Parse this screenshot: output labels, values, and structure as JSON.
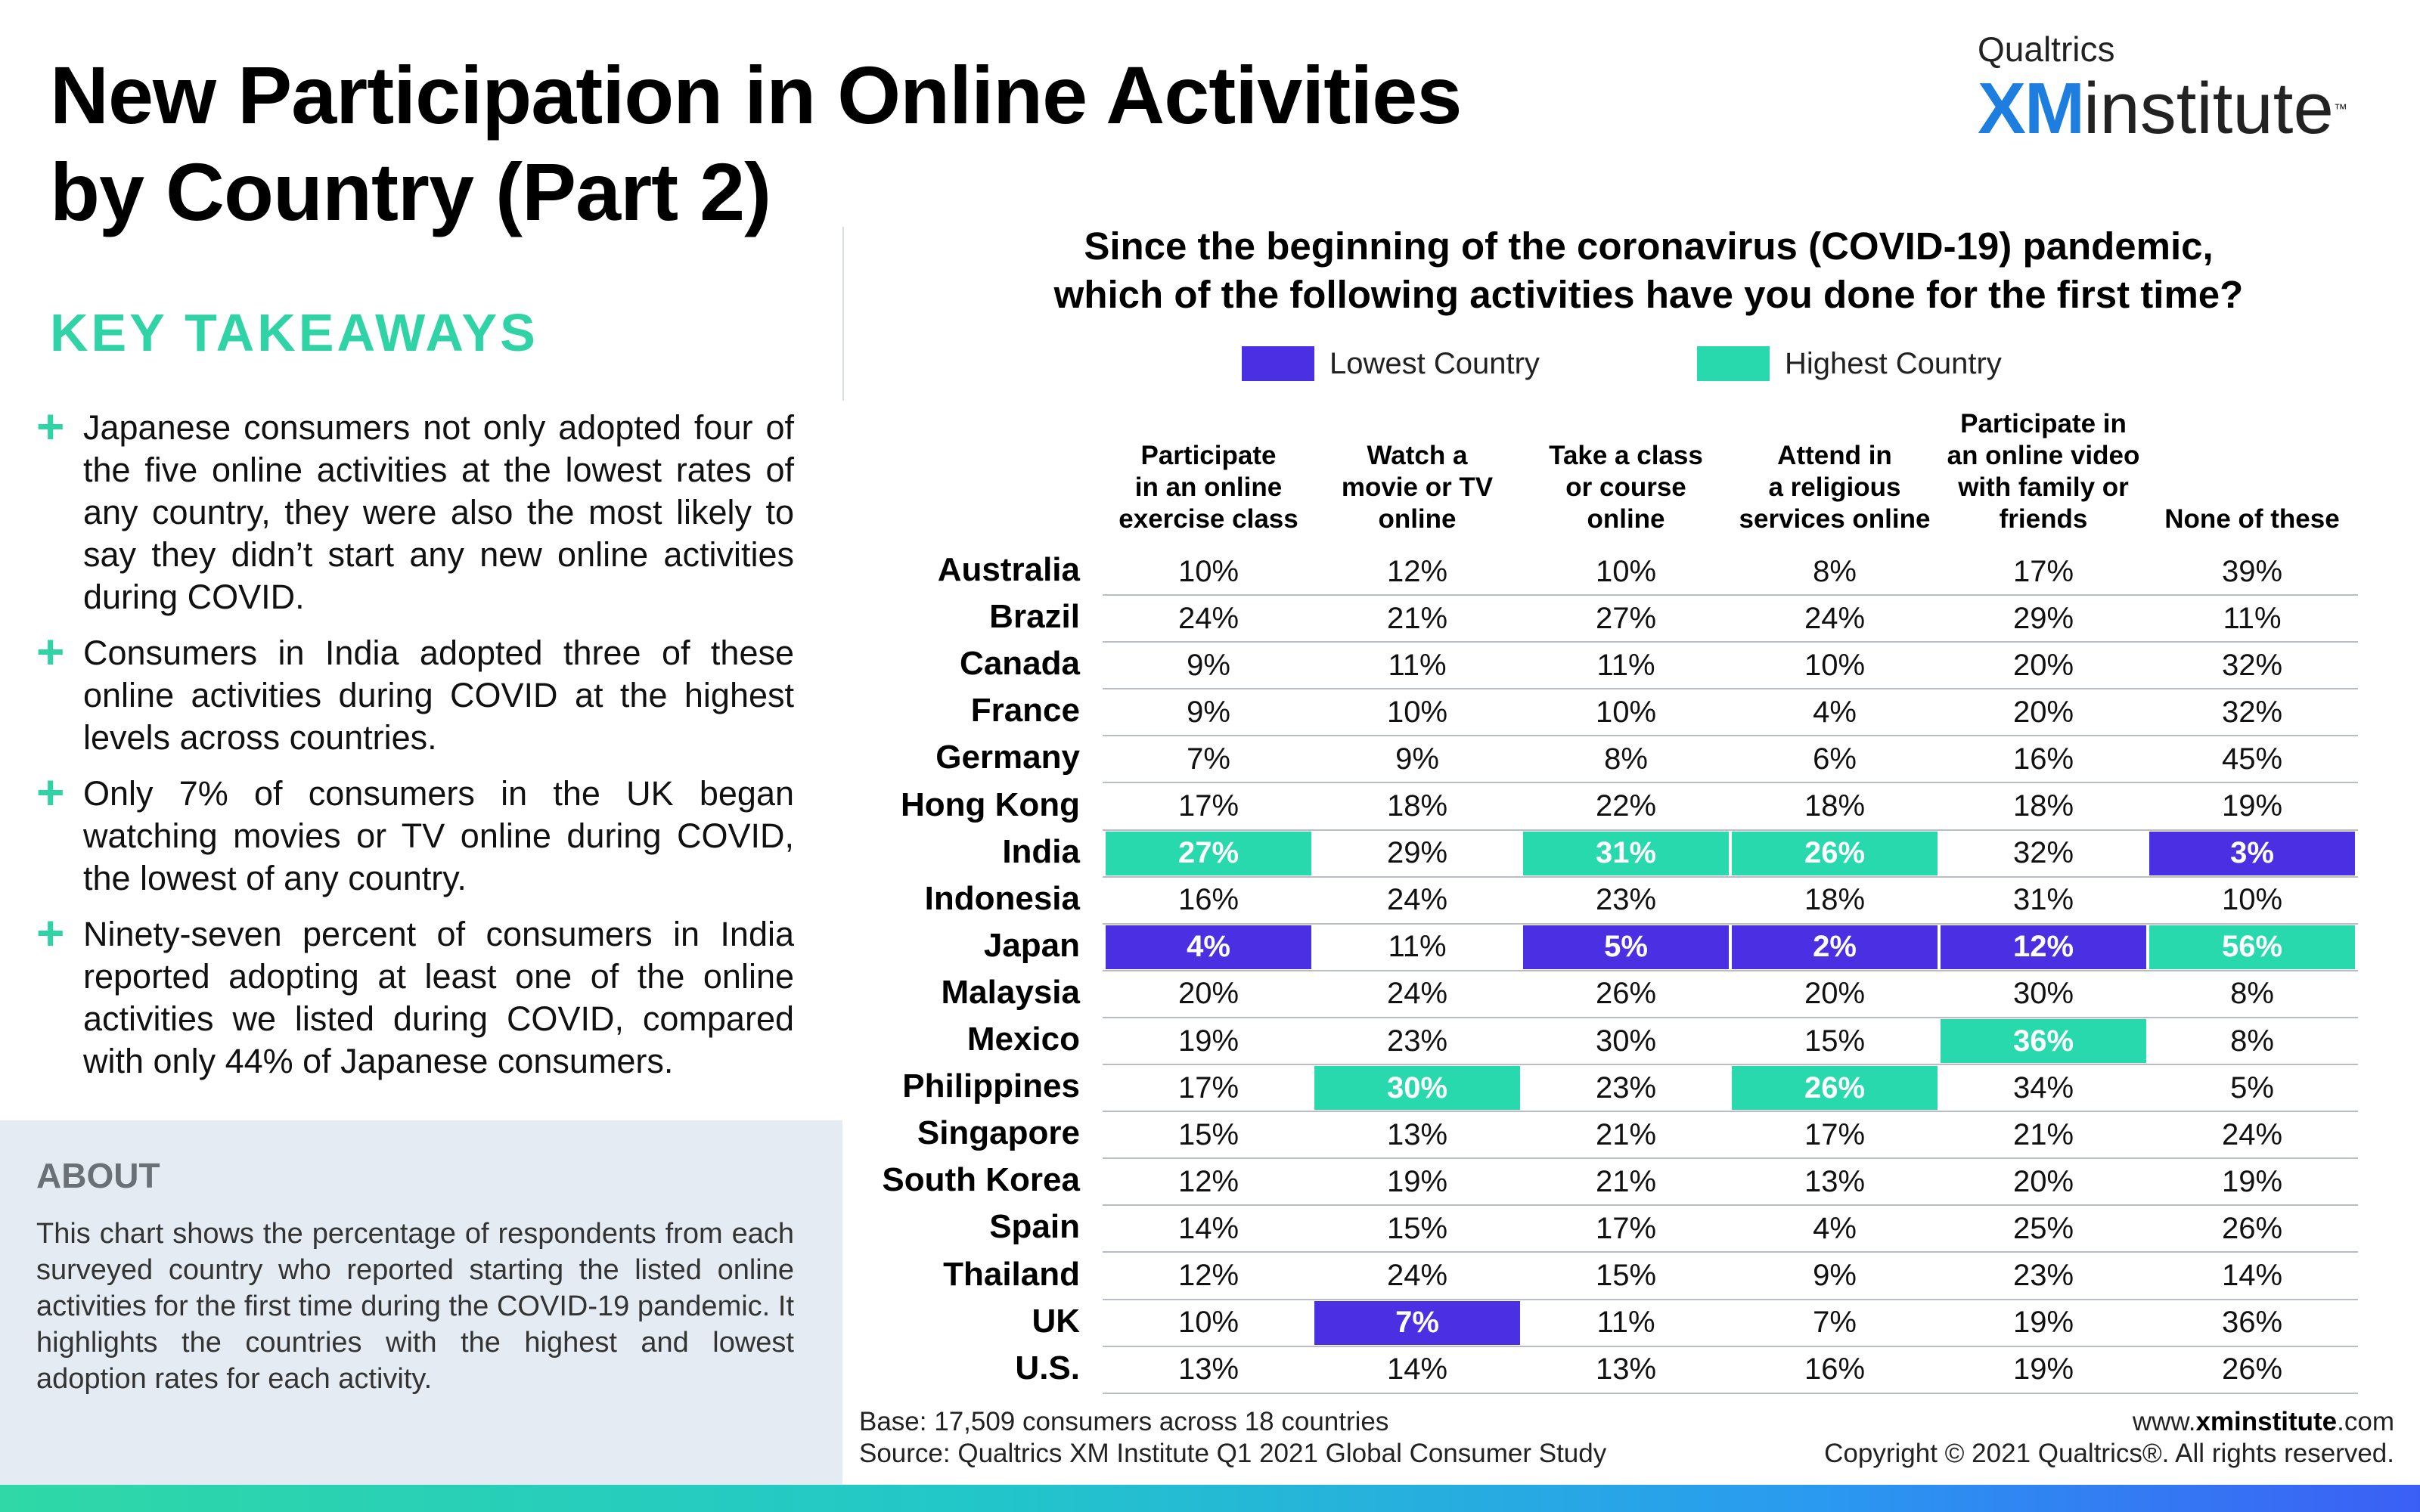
{
  "title_line1": "New Participation in Online Activities",
  "title_line2": "by Country (Part 2)",
  "logo": {
    "top": "Qualtrics",
    "xm": "XM",
    "institute": "institute",
    "tm": "™"
  },
  "key_takeaways": {
    "heading": "KEY TAKEAWAYS",
    "items": [
      "Japanese consumers not only adopted four of the five online activities at the lowest rates of any country, they were also the most likely to say they didn’t start any new online activities during COVID.",
      "Consumers in India adopted three of these online activities during COVID at the highest levels across countries.",
      "Only 7% of consumers in the UK began watching movies or TV online during COVID, the lowest of any country.",
      "Ninety-seven percent of consumers in India reported adopting at least one of the online activities we listed during COVID, compared with only 44% of Japanese consumers."
    ]
  },
  "about": {
    "heading": "ABOUT",
    "text": "This chart shows the percentage of respondents from each surveyed country who reported starting the listed online activities for the first time during the COVID-19 pandemic. It highlights the countries with the highest and lowest adoption rates for each activity."
  },
  "chart_data": {
    "type": "table",
    "title_line1": "Since the beginning of the coronavirus (COVID-19) pandemic,",
    "title_line2": "which of the following activities have you done for the first time?",
    "legend": {
      "low": "Lowest Country",
      "high": "Highest Country"
    },
    "colors": {
      "low": "#4b2fe3",
      "high": "#28d9ad"
    },
    "columns": [
      [
        "Participate",
        "in an online",
        "exercise class"
      ],
      [
        "Watch a",
        "movie or TV",
        "online"
      ],
      [
        "Take a class",
        "or course",
        "online"
      ],
      [
        "Attend in",
        "a religious",
        "services online"
      ],
      [
        "Participate in",
        "an online video",
        "with family or",
        "friends"
      ],
      [
        "None of these"
      ]
    ],
    "rows": [
      {
        "country": "Australia",
        "values": [
          "10%",
          "12%",
          "10%",
          "8%",
          "17%",
          "39%"
        ],
        "hl": [
          "",
          "",
          "",
          "",
          "",
          ""
        ]
      },
      {
        "country": "Brazil",
        "values": [
          "24%",
          "21%",
          "27%",
          "24%",
          "29%",
          "11%"
        ],
        "hl": [
          "",
          "",
          "",
          "",
          "",
          ""
        ]
      },
      {
        "country": "Canada",
        "values": [
          "9%",
          "11%",
          "11%",
          "10%",
          "20%",
          "32%"
        ],
        "hl": [
          "",
          "",
          "",
          "",
          "",
          ""
        ]
      },
      {
        "country": "France",
        "values": [
          "9%",
          "10%",
          "10%",
          "4%",
          "20%",
          "32%"
        ],
        "hl": [
          "",
          "",
          "",
          "",
          "",
          ""
        ]
      },
      {
        "country": "Germany",
        "values": [
          "7%",
          "9%",
          "8%",
          "6%",
          "16%",
          "45%"
        ],
        "hl": [
          "",
          "",
          "",
          "",
          "",
          ""
        ]
      },
      {
        "country": "Hong Kong",
        "values": [
          "17%",
          "18%",
          "22%",
          "18%",
          "18%",
          "19%"
        ],
        "hl": [
          "",
          "",
          "",
          "",
          "",
          ""
        ]
      },
      {
        "country": "India",
        "values": [
          "27%",
          "29%",
          "31%",
          "26%",
          "32%",
          "3%"
        ],
        "hl": [
          "high",
          "",
          "high",
          "high",
          "",
          "low"
        ]
      },
      {
        "country": "Indonesia",
        "values": [
          "16%",
          "24%",
          "23%",
          "18%",
          "31%",
          "10%"
        ],
        "hl": [
          "",
          "",
          "",
          "",
          "",
          ""
        ]
      },
      {
        "country": "Japan",
        "values": [
          "4%",
          "11%",
          "5%",
          "2%",
          "12%",
          "56%"
        ],
        "hl": [
          "low",
          "",
          "low",
          "low",
          "low",
          "high"
        ]
      },
      {
        "country": "Malaysia",
        "values": [
          "20%",
          "24%",
          "26%",
          "20%",
          "30%",
          "8%"
        ],
        "hl": [
          "",
          "",
          "",
          "",
          "",
          ""
        ]
      },
      {
        "country": "Mexico",
        "values": [
          "19%",
          "23%",
          "30%",
          "15%",
          "36%",
          "8%"
        ],
        "hl": [
          "",
          "",
          "",
          "",
          "high",
          ""
        ]
      },
      {
        "country": "Philippines",
        "values": [
          "17%",
          "30%",
          "23%",
          "26%",
          "34%",
          "5%"
        ],
        "hl": [
          "",
          "high",
          "",
          "high",
          "",
          ""
        ]
      },
      {
        "country": "Singapore",
        "values": [
          "15%",
          "13%",
          "21%",
          "17%",
          "21%",
          "24%"
        ],
        "hl": [
          "",
          "",
          "",
          "",
          "",
          ""
        ]
      },
      {
        "country": "South Korea",
        "values": [
          "12%",
          "19%",
          "21%",
          "13%",
          "20%",
          "19%"
        ],
        "hl": [
          "",
          "",
          "",
          "",
          "",
          ""
        ]
      },
      {
        "country": "Spain",
        "values": [
          "14%",
          "15%",
          "17%",
          "4%",
          "25%",
          "26%"
        ],
        "hl": [
          "",
          "",
          "",
          "",
          "",
          ""
        ]
      },
      {
        "country": "Thailand",
        "values": [
          "12%",
          "24%",
          "15%",
          "9%",
          "23%",
          "14%"
        ],
        "hl": [
          "",
          "",
          "",
          "",
          "",
          ""
        ]
      },
      {
        "country": "UK",
        "values": [
          "10%",
          "7%",
          "11%",
          "7%",
          "19%",
          "36%"
        ],
        "hl": [
          "",
          "low",
          "",
          "",
          "",
          ""
        ]
      },
      {
        "country": "U.S.",
        "values": [
          "13%",
          "14%",
          "13%",
          "16%",
          "19%",
          "26%"
        ],
        "hl": [
          "",
          "",
          "",
          "",
          "",
          ""
        ]
      }
    ]
  },
  "footer": {
    "base": "Base: 17,509 consumers across 18 countries",
    "source": "Source: Qualtrics XM Institute Q1 2021 Global Consumer Study",
    "url_prefix": "www.",
    "url_bold": "xminstitute",
    "url_suffix": ".com",
    "copyright": "Copyright © 2021 Qualtrics®. All rights reserved."
  }
}
